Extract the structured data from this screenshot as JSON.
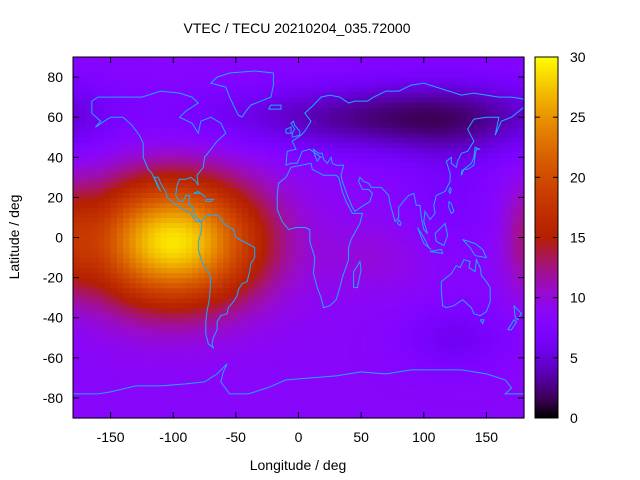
{
  "chart_data": {
    "type": "heatmap",
    "title": "VTEC / TECU 20210204_035.72000",
    "xlabel": "Longitude / deg",
    "ylabel": "Latitude / deg",
    "xlim": [
      -180,
      180
    ],
    "ylim": [
      -90,
      90
    ],
    "x_ticks": [
      -150,
      -100,
      -50,
      0,
      50,
      100,
      150
    ],
    "x_tick_labels": [
      "-150",
      "-100",
      "-50",
      "0",
      "50",
      "100",
      "150"
    ],
    "y_ticks": [
      -80,
      -60,
      -40,
      -20,
      0,
      20,
      40,
      60,
      80
    ],
    "y_tick_labels": [
      "-80",
      "-60",
      "-40",
      "-20",
      "0",
      "20",
      "40",
      "60",
      "80"
    ],
    "colorbar": {
      "range": [
        0,
        30
      ],
      "ticks": [
        0,
        5,
        10,
        15,
        20,
        25,
        30
      ],
      "tick_labels": [
        "0",
        "5",
        "10",
        "15",
        "20",
        "25",
        "30"
      ],
      "colormap": "gnuplot"
    },
    "grid": {
      "dlon": 5,
      "dlat": 2.5,
      "background_tecu": 8.5,
      "peak": {
        "lon": -100,
        "lat": -2,
        "tecu": 29
      },
      "peak_sigma_lon": 48,
      "peak_sigma_lat": 22,
      "features": [
        {
          "lon": 40,
          "lat": 60,
          "sigma_lon": 90,
          "sigma_lat": 12,
          "delta": -4.5
        },
        {
          "lon": 130,
          "lat": 60,
          "sigma_lon": 60,
          "sigma_lat": 15,
          "delta": -3.5
        },
        {
          "lon": 125,
          "lat": -50,
          "sigma_lon": 30,
          "sigma_lat": 12,
          "delta": -2.5
        },
        {
          "lon": 120,
          "lat": 20,
          "sigma_lon": 25,
          "sigma_lat": 20,
          "delta": -1.5
        },
        {
          "lon": 60,
          "lat": -10,
          "sigma_lon": 30,
          "sigma_lat": 12,
          "delta": 1.5
        },
        {
          "lon": 180,
          "lat": 0,
          "sigma_lon": 12,
          "sigma_lat": 20,
          "delta": 4
        }
      ]
    },
    "coastlines_color": "#1fa8ff"
  }
}
